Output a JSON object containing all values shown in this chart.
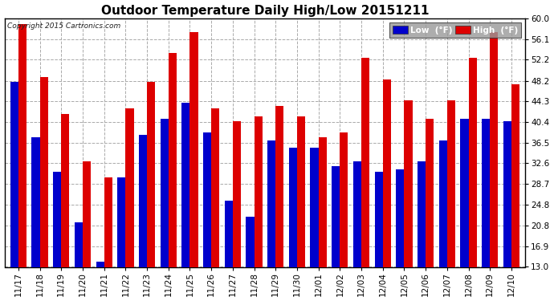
{
  "title": "Outdoor Temperature Daily High/Low 20151211",
  "copyright": "Copyright 2015 Cartronics.com",
  "legend_low_label": "Low  (°F)",
  "legend_high_label": "High  (°F)",
  "low_color": "#0000cc",
  "high_color": "#dd0000",
  "dates": [
    "11/17",
    "11/18",
    "11/19",
    "11/20",
    "11/21",
    "11/22",
    "11/23",
    "11/24",
    "11/25",
    "11/26",
    "11/27",
    "11/28",
    "11/29",
    "11/30",
    "12/01",
    "12/02",
    "12/03",
    "12/04",
    "12/05",
    "12/06",
    "12/07",
    "12/08",
    "12/09",
    "12/10"
  ],
  "low_vals": [
    48.0,
    37.5,
    31.0,
    21.5,
    14.0,
    30.0,
    38.0,
    41.0,
    44.0,
    38.5,
    25.5,
    22.5,
    37.0,
    35.5,
    35.5,
    32.0,
    33.0,
    31.0,
    31.5,
    33.0,
    37.0,
    41.0,
    41.0,
    40.5
  ],
  "high_vals": [
    59.0,
    49.0,
    42.0,
    33.0,
    30.0,
    43.0,
    48.0,
    53.5,
    57.5,
    43.0,
    40.5,
    41.5,
    43.5,
    41.5,
    37.5,
    38.5,
    52.5,
    48.5,
    44.5,
    41.0,
    44.5,
    52.5,
    57.5,
    47.5
  ],
  "ymin": 13.0,
  "ylim": [
    13.0,
    60.0
  ],
  "yticks": [
    13.0,
    16.9,
    20.8,
    24.8,
    28.7,
    32.6,
    36.5,
    40.4,
    44.3,
    48.2,
    52.2,
    56.1,
    60.0
  ],
  "bg_color": "#ffffff",
  "plot_bg_color": "#ffffff",
  "grid_color": "#aaaaaa",
  "bar_width": 0.38,
  "title_fontsize": 11,
  "tick_fontsize": 7.5,
  "copyright_fontsize": 6.5
}
